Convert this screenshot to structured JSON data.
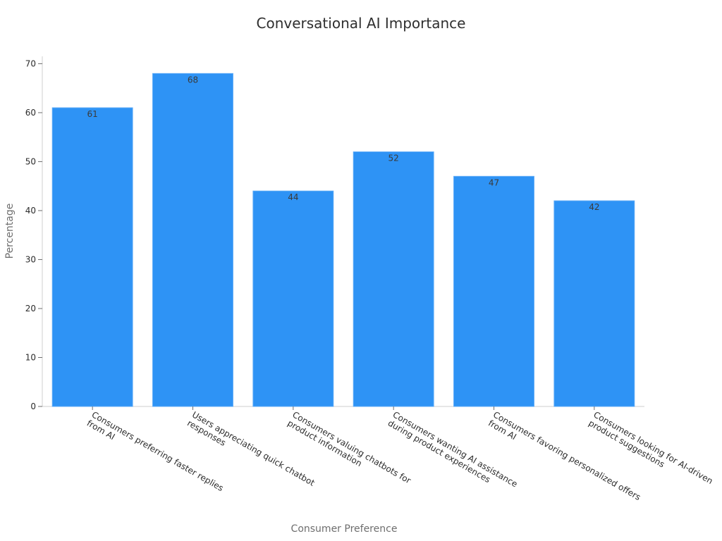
{
  "chart_data": {
    "type": "bar",
    "title": "Conversational AI Importance",
    "xlabel": "Consumer Preference",
    "ylabel": "Percentage",
    "categories": [
      [
        "Consumers preferring faster replies",
        "from AI"
      ],
      [
        "Users appreciating quick chatbot",
        "responses"
      ],
      [
        "Consumers valuing chatbots for",
        "product information"
      ],
      [
        "Consumers wanting AI assistance",
        "during product experiences"
      ],
      [
        "Consumers favoring personalized offers",
        "from AI"
      ],
      [
        "Consumers looking for AI-driven",
        "product suggestions"
      ]
    ],
    "values": [
      61,
      68,
      44,
      52,
      47,
      42
    ],
    "ylim": [
      0,
      71.5
    ],
    "yticks": [
      0,
      10,
      20,
      30,
      40,
      50,
      60,
      70
    ],
    "grid": false,
    "bar_color": "#2e93f5",
    "bar_edge_color": "#5aa9f7"
  }
}
